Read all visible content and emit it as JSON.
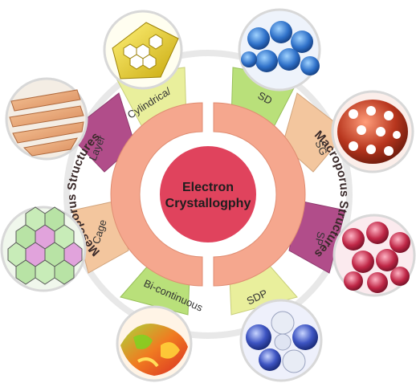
{
  "center": {
    "line1": "Electron",
    "line2": "Crystallogphy"
  },
  "ring": {
    "left": "Mesoporus Structures",
    "right": "Macroporus Structures"
  },
  "left_tabs": [
    {
      "label": "Cylindrica/",
      "color": "#e9ef9c"
    },
    {
      "label": "Layer",
      "color": "#b14d8a"
    },
    {
      "label": "Cage",
      "color": "#f3c69e"
    },
    {
      "label": "Bi-continuous",
      "color": "#b9e07a"
    }
  ],
  "right_tabs": [
    {
      "label": "SD",
      "color": "#b9e07a"
    },
    {
      "label": "SG",
      "color": "#f3c69e"
    },
    {
      "label": "SP",
      "color": "#b14d8a"
    },
    {
      "label": "SDP",
      "color": "#e9ef9c"
    }
  ],
  "colors": {
    "center_fill": "#e0435d",
    "ring_fill": "#f5a78e",
    "outer_ring": "#e6e6e6"
  }
}
